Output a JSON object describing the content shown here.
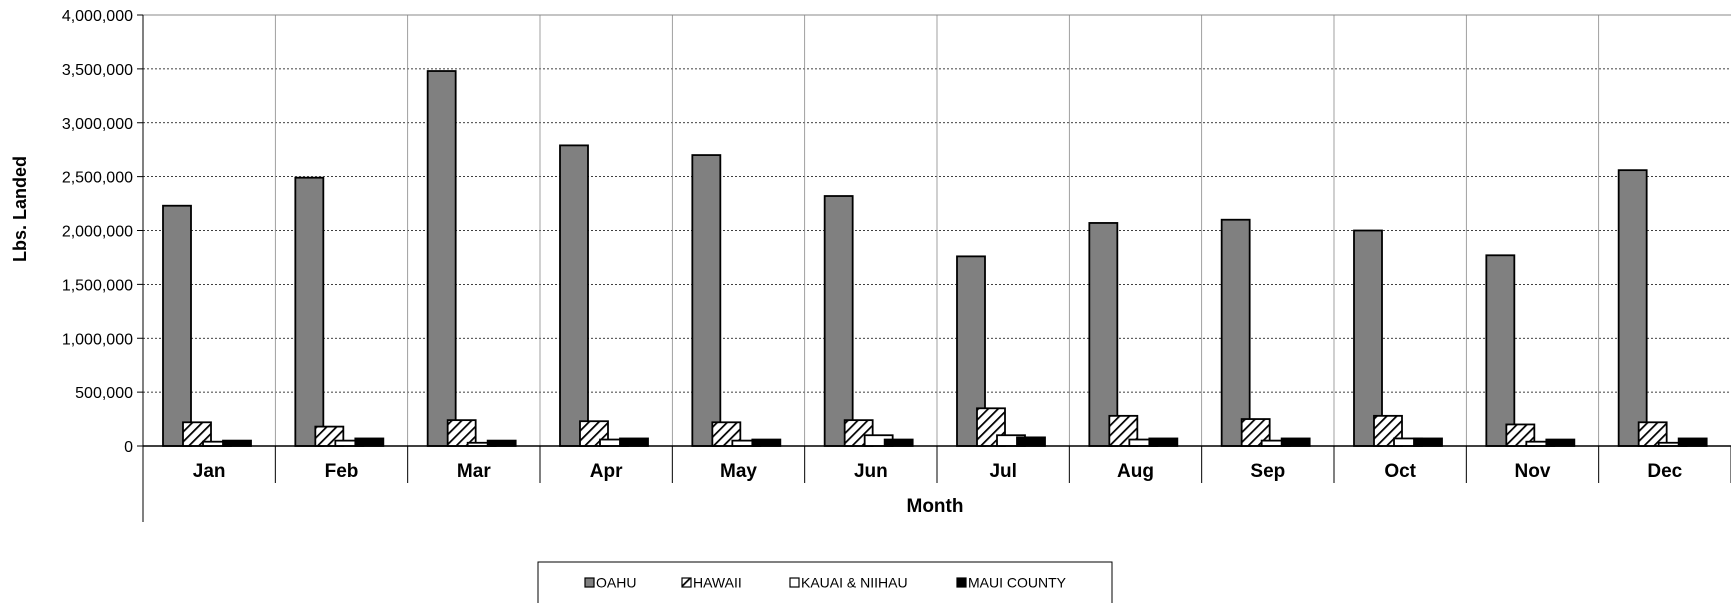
{
  "chart_data": {
    "type": "bar",
    "title": "",
    "xlabel": "Month",
    "ylabel": "Lbs. Landed",
    "ylim": [
      0,
      4000000
    ],
    "yticks": [
      0,
      500000,
      1000000,
      1500000,
      2000000,
      2500000,
      3000000,
      3500000,
      4000000
    ],
    "ytick_labels": [
      "0",
      "500,000",
      "1,000,000",
      "1,500,000",
      "2,000,000",
      "2,500,000",
      "3,000,000",
      "3,500,000",
      "4,000,000"
    ],
    "grid": true,
    "legend_position": "bottom",
    "categories": [
      "Jan",
      "Feb",
      "Mar",
      "Apr",
      "May",
      "Jun",
      "Jul",
      "Aug",
      "Sep",
      "Oct",
      "Nov",
      "Dec"
    ],
    "series": [
      {
        "name": "OAHU",
        "color": "#808080",
        "pattern": "solid",
        "values": [
          2230000,
          2490000,
          3480000,
          2790000,
          2700000,
          2320000,
          1760000,
          2070000,
          2100000,
          2000000,
          1770000,
          2560000
        ]
      },
      {
        "name": "HAWAII",
        "color": "#ffffff",
        "pattern": "hatch",
        "values": [
          220000,
          180000,
          240000,
          230000,
          220000,
          240000,
          350000,
          280000,
          250000,
          280000,
          200000,
          220000
        ]
      },
      {
        "name": "KAUAI & NIIHAU",
        "color": "#ffffff",
        "pattern": "solid",
        "values": [
          40000,
          50000,
          30000,
          60000,
          50000,
          100000,
          100000,
          60000,
          50000,
          70000,
          40000,
          30000
        ]
      },
      {
        "name": "MAUI COUNTY",
        "color": "#000000",
        "pattern": "solid",
        "values": [
          50000,
          70000,
          50000,
          70000,
          60000,
          60000,
          80000,
          70000,
          70000,
          70000,
          60000,
          70000
        ]
      }
    ]
  }
}
